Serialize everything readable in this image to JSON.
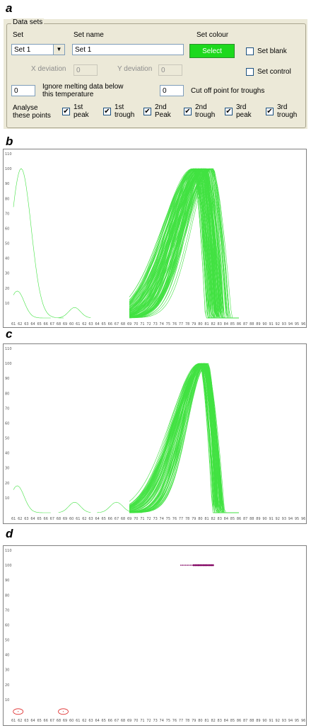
{
  "panels": {
    "a": "a",
    "b": "b",
    "c": "c",
    "d": "d"
  },
  "dialog": {
    "group_title": "Data sets",
    "set_label": "Set",
    "set_value": "Set 1",
    "set_name_label": "Set name",
    "set_name_value": "Set 1",
    "set_colour_label": "Set colour",
    "select_button": "Select",
    "select_color": "#1dd91d",
    "set_blank_label": "Set blank",
    "set_control_label": "Set control",
    "x_deviation_label": "X deviation",
    "x_deviation_value": "0",
    "y_deviation_label": "Y deviation",
    "y_deviation_value": "0",
    "ignore_value": "0",
    "ignore_label_1": "Ignore melting data below",
    "ignore_label_2": "this temperature",
    "cutoff_value": "0",
    "cutoff_label": "Cut off point for troughs",
    "analyse_label_1": "Analyse",
    "analyse_label_2": "these points",
    "points": [
      {
        "l1": "1st",
        "l2": "peak",
        "checked": true
      },
      {
        "l1": "1st",
        "l2": "trough",
        "checked": true
      },
      {
        "l1": "2nd",
        "l2": "Peak",
        "checked": true
      },
      {
        "l1": "2nd",
        "l2": "trough",
        "checked": true
      },
      {
        "l1": "3rd",
        "l2": "peak",
        "checked": true
      },
      {
        "l1": "3rd",
        "l2": "trough",
        "checked": true
      }
    ]
  },
  "chart_data": [
    {
      "type": "line",
      "panel": "b",
      "color": "#22dd22",
      "ylim": [
        0,
        110
      ],
      "yticks": [
        "110",
        "100",
        "90",
        "80",
        "70",
        "60",
        "50",
        "40",
        "30",
        "20",
        "10"
      ],
      "xticks": [
        "61",
        "62",
        "63",
        "64",
        "65",
        "66",
        "67",
        "68",
        "69",
        "60",
        "61",
        "62",
        "63",
        "64",
        "65",
        "66",
        "67",
        "68",
        "69",
        "70",
        "71",
        "72",
        "73",
        "74",
        "75",
        "76",
        "77",
        "78",
        "79",
        "80",
        "81",
        "82",
        "83",
        "84",
        "85",
        "86",
        "87",
        "88",
        "89",
        "90",
        "91",
        "92",
        "93",
        "94",
        "95",
        "96"
      ],
      "series_count": 120,
      "peak_temperature_range": [
        79,
        82
      ],
      "early_peak_temperature": 62,
      "peak_value": 100
    },
    {
      "type": "line",
      "panel": "c",
      "color": "#22dd22",
      "ylim": [
        0,
        110
      ],
      "yticks": [
        "110",
        "100",
        "90",
        "80",
        "70",
        "60",
        "50",
        "40",
        "30",
        "20",
        "10"
      ],
      "xticks": [
        "61",
        "62",
        "63",
        "64",
        "65",
        "66",
        "67",
        "68",
        "69",
        "60",
        "61",
        "62",
        "63",
        "64",
        "65",
        "66",
        "67",
        "68",
        "69",
        "70",
        "71",
        "72",
        "73",
        "74",
        "75",
        "76",
        "77",
        "78",
        "79",
        "80",
        "81",
        "82",
        "83",
        "84",
        "85",
        "86",
        "87",
        "88",
        "89",
        "90",
        "91",
        "92",
        "93",
        "94",
        "95",
        "96"
      ],
      "series_count": 80,
      "peak_temperature_range": [
        80,
        81
      ],
      "peak_value": 100
    },
    {
      "type": "scatter",
      "panel": "d",
      "color": "#800060",
      "ylim": [
        0,
        110
      ],
      "yticks": [
        "110",
        "100",
        "90",
        "80",
        "70",
        "60",
        "50",
        "40",
        "30",
        "20",
        "10"
      ],
      "xticks": [
        "61",
        "62",
        "63",
        "64",
        "65",
        "66",
        "67",
        "68",
        "69",
        "60",
        "61",
        "62",
        "63",
        "64",
        "65",
        "66",
        "67",
        "68",
        "69",
        "70",
        "71",
        "72",
        "73",
        "74",
        "75",
        "76",
        "77",
        "78",
        "79",
        "80",
        "81",
        "82",
        "83",
        "84",
        "85",
        "86",
        "87",
        "88",
        "89",
        "90",
        "91",
        "92",
        "93",
        "94",
        "95",
        "96"
      ],
      "peak_points_x_range": [
        77,
        82
      ],
      "peak_value": 100,
      "circled_color": "#dd2222"
    }
  ]
}
